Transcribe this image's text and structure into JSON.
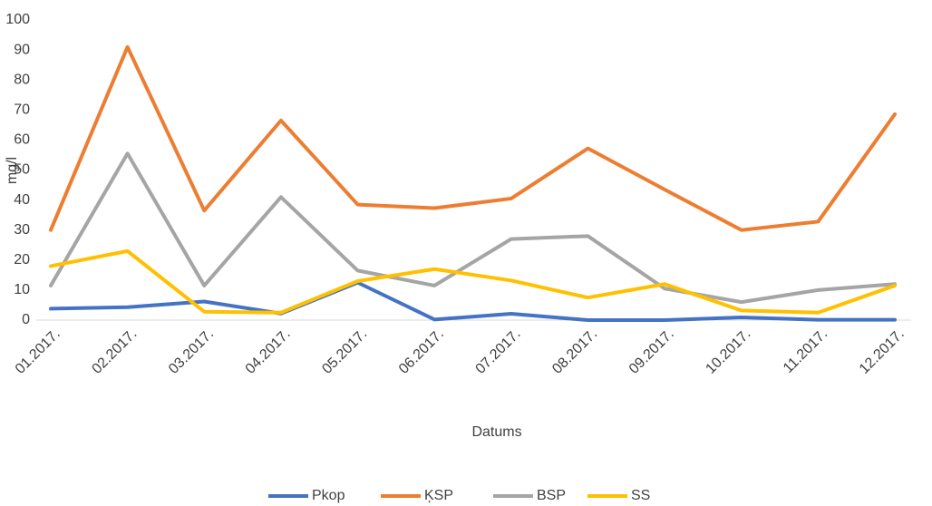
{
  "chart_data": {
    "type": "line",
    "y_label": "mg/l",
    "x_label": "Datums",
    "categories": [
      "01.2017.",
      "02.2017.",
      "03.2017.",
      "04.2017.",
      "05.2017.",
      "06.2017.",
      "07.2017.",
      "08.2017.",
      "09.2017.",
      "10.2017.",
      "11.2017.",
      "12.2017."
    ],
    "series": [
      {
        "name": "Pkop",
        "color": "#4472c4",
        "values": [
          3.8,
          4.3,
          6.2,
          2.2,
          12.5,
          0.2,
          2.1,
          0,
          0,
          0.9,
          0.1,
          0.1
        ]
      },
      {
        "name": "ĶSP",
        "color": "#ed7d31",
        "values": [
          30,
          91,
          36.5,
          66.5,
          38.5,
          37.3,
          40.5,
          57.2,
          43.5,
          30,
          32.8,
          68.6
        ]
      },
      {
        "name": "BSP",
        "color": "#a5a5a5",
        "values": [
          11.5,
          55.5,
          11.5,
          41,
          16.5,
          11.5,
          27,
          28,
          10.5,
          6,
          10,
          12
        ]
      },
      {
        "name": "SS",
        "color": "#ffc000",
        "values": [
          18,
          23,
          2.8,
          2.5,
          13,
          17,
          13.2,
          7.5,
          12,
          3.2,
          2.5,
          11.5
        ]
      }
    ],
    "ylim": [
      0,
      100
    ],
    "yticks": [
      0,
      10,
      20,
      30,
      40,
      50,
      60,
      70,
      80,
      90,
      100
    ],
    "grid": false,
    "legend": "bottom"
  }
}
